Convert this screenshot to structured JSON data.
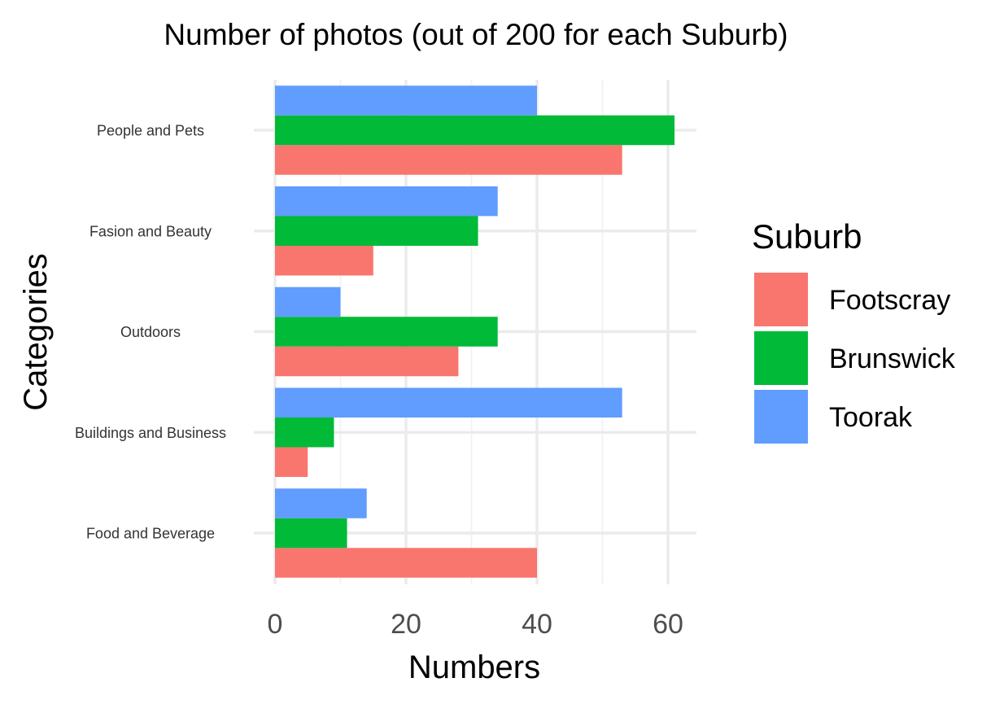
{
  "chart_data": {
    "type": "bar",
    "orientation": "horizontal",
    "title": "Number of photos (out of 200 for each Suburb)",
    "xlabel": "Numbers",
    "ylabel": "Categories",
    "categories": [
      "People and Pets",
      "Fasion and Beauty",
      "Outdoors",
      "Buildings and Business",
      "Food and Beverage"
    ],
    "series": [
      {
        "name": "Footscray",
        "color": "#F8766D",
        "values": [
          53,
          15,
          28,
          5,
          40
        ]
      },
      {
        "name": "Brunswick",
        "color": "#00BA38",
        "values": [
          61,
          31,
          34,
          9,
          11
        ]
      },
      {
        "name": "Toorak",
        "color": "#619CFF",
        "values": [
          40,
          34,
          10,
          53,
          14
        ]
      }
    ],
    "xlim": [
      0,
      64
    ],
    "xticks": [
      0,
      20,
      40,
      60
    ],
    "grid": true,
    "legend": {
      "title": "Suburb",
      "position": "right"
    }
  }
}
